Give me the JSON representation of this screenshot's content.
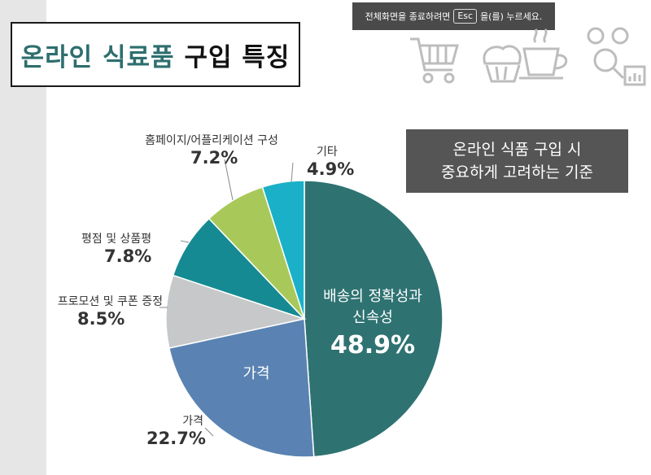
{
  "title": {
    "part1": "온라인 식료품",
    "part2": "구입 특징"
  },
  "esc_banner": {
    "before": "전체화면을 종료하려면",
    "key": "Esc",
    "after": "을(를) 누르세요."
  },
  "criteria_box": {
    "line1": "온라인 식품 구입 시",
    "line2": "중요하게 고려하는 기준"
  },
  "icons": [
    "shopping-cart-icon",
    "muffin-icon",
    "coffee-cup-icon",
    "analytics-people-icon"
  ],
  "chart_data": {
    "type": "pie",
    "title": "",
    "start": "12 o'clock",
    "direction": "clockwise",
    "slices": [
      {
        "label": "배송의 정확성과 신속성",
        "value": 48.9,
        "display": "48.9%",
        "color": "#2f7272"
      },
      {
        "label": "가격",
        "value": 22.7,
        "display": "22.7%",
        "color": "#5a83b3"
      },
      {
        "label": "프로모션 및 쿠폰 증정",
        "value": 8.5,
        "display": "8.5%",
        "color": "#c6c8c9"
      },
      {
        "label": "평점 및 상품평",
        "value": 7.8,
        "display": "7.8%",
        "color": "#158a93"
      },
      {
        "label": "홈페이지/어플리케이션 구성",
        "value": 7.2,
        "display": "7.2%",
        "color": "#a8c95a"
      },
      {
        "label": "기타",
        "value": 4.9,
        "display": "4.9%",
        "color": "#1ab0c8"
      }
    ],
    "inner_labels": {
      "main_line1": "배송의 정확성과",
      "main_line2": "신속성",
      "main_pct": "48.9%",
      "price": "가격"
    }
  }
}
